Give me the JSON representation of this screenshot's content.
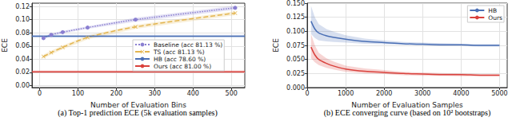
{
  "chart_data": [
    {
      "type": "line",
      "title": "(a) Top-1 prediction ECE (5k evaluation samples)",
      "x_label": "Number of Evaluation Bins",
      "y_label": "ECE",
      "xlim": [
        -20,
        535
      ],
      "xticks": [
        0,
        100,
        200,
        300,
        400,
        500
      ],
      "ylim": [
        -0.003,
        0.125
      ],
      "yticks": [
        {
          "value": 0,
          "label": "0.00"
        },
        0.02,
        0.04,
        0.06,
        0.08,
        {
          "value": 0.1,
          "label": "0.10"
        },
        0.12
      ],
      "grid": true,
      "legend": "center right",
      "series": [
        {
          "name": "Baseline (acc 81.13 %)",
          "color": "#8a7fd1",
          "marker": "circle",
          "line_style": "dotted",
          "x": [
            10,
            30,
            60,
            125,
            250,
            510
          ],
          "values": [
            0.072,
            0.077,
            0.081,
            0.088,
            0.1,
            0.118
          ],
          "lower": [
            0.07,
            0.075,
            0.079,
            0.086,
            0.097,
            0.115
          ],
          "upper": [
            0.074,
            0.079,
            0.083,
            0.09,
            0.103,
            0.121
          ]
        },
        {
          "name": "TS (acc 81.13 %)",
          "color": "#e3b54f",
          "marker": "x",
          "line_style": "dashed",
          "x": [
            10,
            30,
            60,
            125,
            250,
            510
          ],
          "values": [
            0.044,
            0.05,
            0.058,
            0.073,
            0.089,
            0.11
          ],
          "lower": [
            0.041,
            0.047,
            0.055,
            0.07,
            0.086,
            0.107
          ],
          "upper": [
            0.047,
            0.053,
            0.061,
            0.076,
            0.092,
            0.113
          ]
        },
        {
          "name": "HB (acc 78.60 %)",
          "color": "#4a6fb5",
          "line_style": "solid",
          "x": [
            -20,
            535
          ],
          "values": [
            0.075,
            0.075
          ],
          "lower": [
            0.073,
            0.073
          ],
          "upper": [
            0.077,
            0.077
          ]
        },
        {
          "name": "Ours (acc 81.00 %)",
          "color": "#d9413c",
          "line_style": "solid",
          "x": [
            -20,
            535
          ],
          "values": [
            0.021,
            0.021
          ],
          "lower": [
            0.019,
            0.019
          ],
          "upper": [
            0.023,
            0.023
          ]
        }
      ]
    },
    {
      "type": "line",
      "title": "(b) ECE converging curve (based on 10² bootstraps)",
      "x_label": "Number of Evaluation Samples",
      "y_label": "ECE",
      "xlim": [
        0,
        5200
      ],
      "xticks": [
        0,
        1000,
        2000,
        3000,
        4000,
        5000
      ],
      "ylim": [
        0,
        0.15
      ],
      "yticks": [
        {
          "value": 0,
          "label": "0.000"
        },
        {
          "value": 0.025,
          "label": "0.025"
        },
        {
          "value": 0.05,
          "label": "0.050"
        },
        {
          "value": 0.075,
          "label": "0.075"
        },
        {
          "value": 0.1,
          "label": "0.100"
        },
        {
          "value": 0.125,
          "label": "0.125"
        },
        {
          "value": 0.15,
          "label": "0.150"
        }
      ],
      "grid": true,
      "legend": "upper right",
      "series": [
        {
          "name": "HB",
          "color": "#4a6fb5",
          "line_style": "solid",
          "x": [
            100,
            200,
            300,
            500,
            700,
            1000,
            1500,
            2000,
            2500,
            3000,
            3500,
            4000,
            4500,
            5000
          ],
          "values": [
            0.118,
            0.104,
            0.097,
            0.092,
            0.089,
            0.086,
            0.082,
            0.08,
            0.078,
            0.077,
            0.076,
            0.076,
            0.075,
            0.075
          ],
          "lower": [
            0.095,
            0.088,
            0.084,
            0.082,
            0.081,
            0.08,
            0.078,
            0.077,
            0.076,
            0.075,
            0.074,
            0.074,
            0.073,
            0.073
          ],
          "upper": [
            0.145,
            0.125,
            0.113,
            0.104,
            0.099,
            0.093,
            0.087,
            0.084,
            0.081,
            0.08,
            0.079,
            0.078,
            0.077,
            0.077
          ]
        },
        {
          "name": "Ours",
          "color": "#d9413c",
          "line_style": "solid",
          "x": [
            100,
            200,
            300,
            500,
            700,
            1000,
            1500,
            2000,
            2500,
            3000,
            3500,
            4000,
            4500,
            5000
          ],
          "values": [
            0.072,
            0.058,
            0.05,
            0.043,
            0.038,
            0.033,
            0.029,
            0.027,
            0.025,
            0.024,
            0.023,
            0.023,
            0.022,
            0.022
          ],
          "lower": [
            0.052,
            0.045,
            0.04,
            0.035,
            0.032,
            0.028,
            0.025,
            0.024,
            0.022,
            0.021,
            0.021,
            0.02,
            0.02,
            0.02
          ],
          "upper": [
            0.095,
            0.075,
            0.062,
            0.052,
            0.046,
            0.039,
            0.034,
            0.031,
            0.028,
            0.027,
            0.026,
            0.025,
            0.024,
            0.024
          ]
        }
      ]
    }
  ]
}
